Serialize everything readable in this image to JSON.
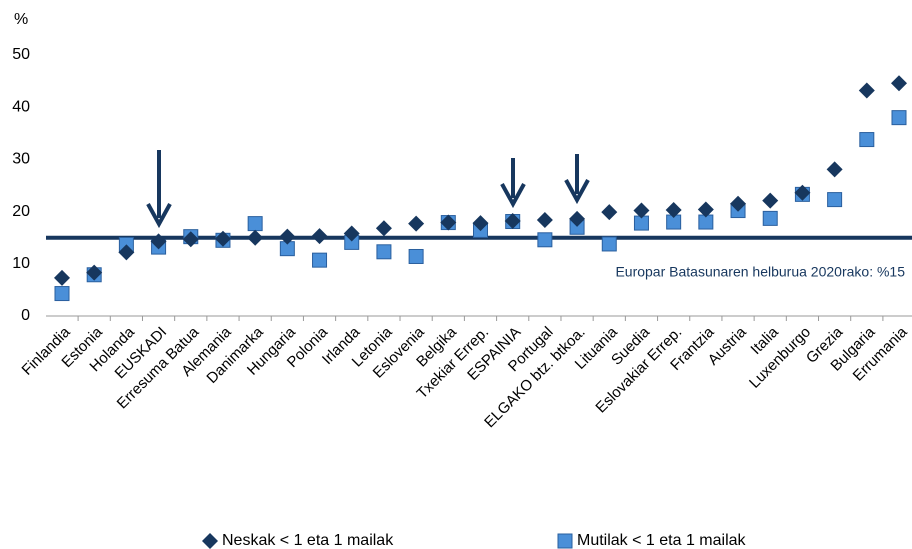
{
  "chart_data": {
    "type": "scatter",
    "y_label": "%",
    "categories": [
      "Finlandia",
      "Estonia",
      "Holanda",
      "EUSKADI",
      "Erresuma Batua",
      "Alemania",
      "Danimarka",
      "Hungaria",
      "Polonia",
      "Irlanda",
      "Letonia",
      "Eslovenia",
      "Belgika",
      "Txekiar Errep.",
      "ESPAINIA",
      "Portugal",
      "ELGAKO btz. btkoa.",
      "Lituania",
      "Suedia",
      "Eslovakiar Errep.",
      "Frantzia",
      "Austria",
      "Italia",
      "Luxenburgo",
      "Grezia",
      "Bulgaria",
      "Errumania"
    ],
    "series": [
      {
        "name": "Neskak < 1 eta 1 mailak",
        "color": "#17375e",
        "marker": "diamond",
        "values": [
          7.3,
          8.3,
          12.2,
          14.3,
          14.7,
          14.8,
          15.0,
          15.2,
          15.3,
          15.8,
          16.8,
          17.7,
          17.9,
          17.8,
          18.2,
          18.4,
          18.6,
          19.9,
          20.2,
          20.3,
          20.4,
          21.5,
          22.1,
          23.6,
          28.1,
          43.2,
          44.6
        ]
      },
      {
        "name": "Mutilak < 1 eta 1 mailak",
        "color": "#4a8fd8",
        "marker": "square",
        "values": [
          4.3,
          7.9,
          13.7,
          13.2,
          15.2,
          14.5,
          17.7,
          12.9,
          10.7,
          14.1,
          12.3,
          11.4,
          17.9,
          16.4,
          18.1,
          14.6,
          17.0,
          13.8,
          17.8,
          18.0,
          18.0,
          20.2,
          18.7,
          23.3,
          22.3,
          33.8,
          38.0
        ]
      }
    ],
    "reference_line": {
      "value": 15,
      "label": "Europar Batasunaren helburua 2020rako: %15",
      "color": "#17375e"
    },
    "ylim": [
      0,
      50
    ],
    "yticks": [
      0,
      10,
      20,
      30,
      40,
      50
    ],
    "grid": false
  }
}
